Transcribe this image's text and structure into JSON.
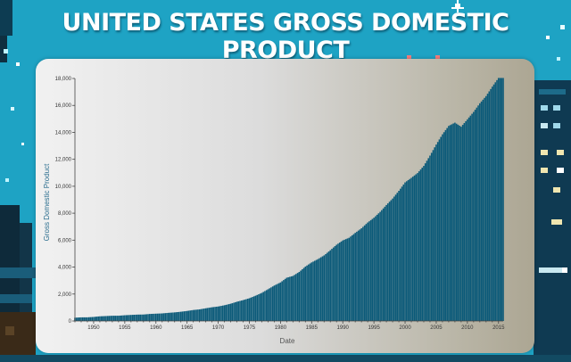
{
  "page": {
    "title": "UNITED STATES GROSS DOMESTIC PRODUCT"
  },
  "colors": {
    "background": "#1ea3c4",
    "bar": "#0b5a79",
    "axis": "#444444"
  },
  "chart_data": {
    "type": "bar",
    "title": "",
    "xlabel": "Date",
    "ylabel": "Gross Domestic Product",
    "x_range": [
      1947.0,
      2015.75
    ],
    "ylim": [
      0,
      18000
    ],
    "grid": false,
    "legend": "none",
    "x_ticks": [
      "1950",
      "1955",
      "1960",
      "1965",
      "1970",
      "1975",
      "1980",
      "1985",
      "1990",
      "1995",
      "2000",
      "2005",
      "2010",
      "2015"
    ],
    "y_ticks": [
      "0",
      "2,000",
      "4,000",
      "6,000",
      "8,000",
      "10,000",
      "12,000",
      "14,000",
      "16,000",
      "18,000"
    ],
    "series": [
      {
        "frequency": "annual samples (year, value)",
        "points": [
          [
            1947,
            243
          ],
          [
            1948,
            270
          ],
          [
            1949,
            272
          ],
          [
            1950,
            300
          ],
          [
            1951,
            347
          ],
          [
            1952,
            367
          ],
          [
            1953,
            389
          ],
          [
            1954,
            391
          ],
          [
            1955,
            426
          ],
          [
            1956,
            450
          ],
          [
            1957,
            474
          ],
          [
            1958,
            481
          ],
          [
            1959,
            522
          ],
          [
            1960,
            543
          ],
          [
            1961,
            563
          ],
          [
            1962,
            605
          ],
          [
            1963,
            638
          ],
          [
            1964,
            686
          ],
          [
            1965,
            744
          ],
          [
            1966,
            815
          ],
          [
            1967,
            862
          ],
          [
            1968,
            943
          ],
          [
            1969,
            1019
          ],
          [
            1970,
            1076
          ],
          [
            1971,
            1168
          ],
          [
            1972,
            1282
          ],
          [
            1973,
            1429
          ],
          [
            1974,
            1549
          ],
          [
            1975,
            1689
          ],
          [
            1976,
            1878
          ],
          [
            1977,
            2086
          ],
          [
            1978,
            2357
          ],
          [
            1979,
            2632
          ],
          [
            1980,
            2862
          ],
          [
            1981,
            3211
          ],
          [
            1982,
            3345
          ],
          [
            1983,
            3638
          ],
          [
            1984,
            4041
          ],
          [
            1985,
            4347
          ],
          [
            1986,
            4590
          ],
          [
            1987,
            4870
          ],
          [
            1988,
            5253
          ],
          [
            1989,
            5658
          ],
          [
            1990,
            5980
          ],
          [
            1991,
            6174
          ],
          [
            1992,
            6539
          ],
          [
            1993,
            6879
          ],
          [
            1994,
            7309
          ],
          [
            1995,
            7664
          ],
          [
            1996,
            8100
          ],
          [
            1997,
            8609
          ],
          [
            1998,
            9089
          ],
          [
            1999,
            9661
          ],
          [
            2000,
            10285
          ],
          [
            2001,
            10622
          ],
          [
            2002,
            10978
          ],
          [
            2003,
            11511
          ],
          [
            2004,
            12275
          ],
          [
            2005,
            13094
          ],
          [
            2006,
            13856
          ],
          [
            2007,
            14478
          ],
          [
            2008,
            14719
          ],
          [
            2009,
            14419
          ],
          [
            2010,
            14964
          ],
          [
            2011,
            15518
          ],
          [
            2012,
            16155
          ],
          [
            2013,
            16692
          ],
          [
            2014,
            17393
          ],
          [
            2015,
            18037
          ]
        ]
      }
    ]
  }
}
